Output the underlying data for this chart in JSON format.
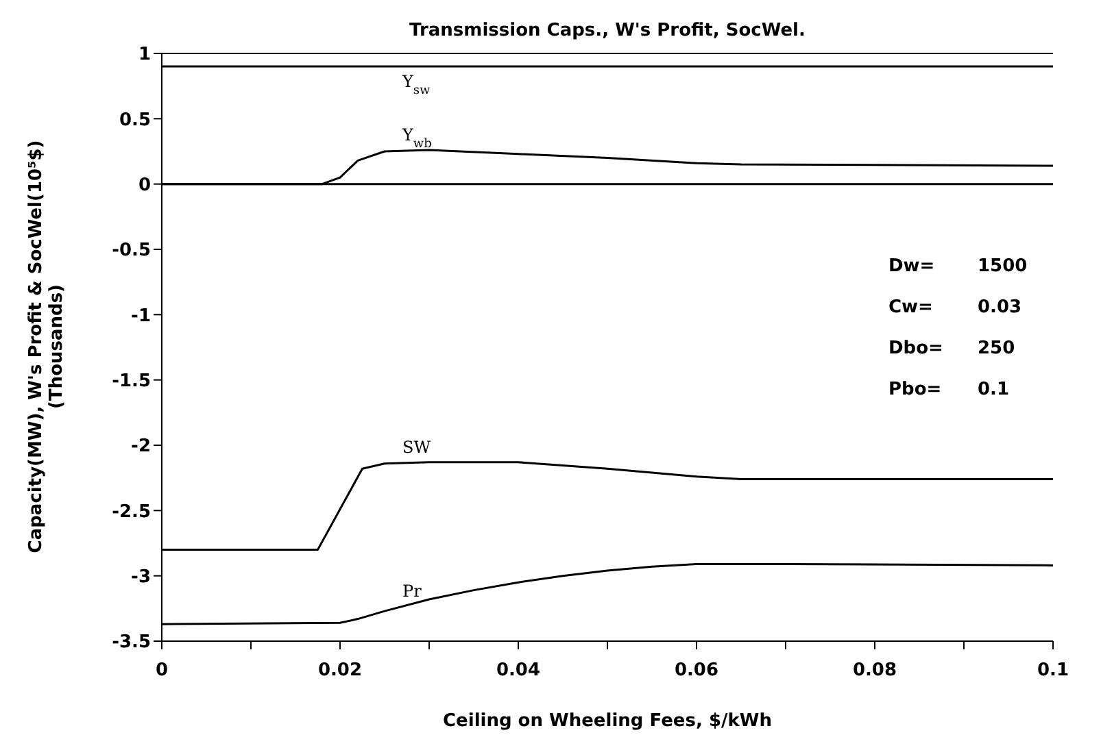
{
  "chart_data": {
    "type": "line",
    "title": "Transmission Caps., W's Profit, SocWel.",
    "xlabel": "Ceiling on Wheeling Fees, $/kWh",
    "ylabel": "Capacity(MW), W's Profit & SocWel(10⁵$)\n(Thousands)",
    "xlim": [
      0,
      0.1
    ],
    "ylim": [
      -3.5,
      1
    ],
    "xticks": [
      0,
      {
        "value": 0.01,
        "label": null
      },
      0.02,
      {
        "value": 0.03,
        "label": null
      },
      0.04,
      {
        "value": 0.05,
        "label": null
      },
      0.06,
      {
        "value": 0.07,
        "label": null
      },
      0.08,
      {
        "value": 0.09,
        "label": null
      },
      0.1
    ],
    "yticks": [
      -3.5,
      -3,
      -2.5,
      -2,
      -1.5,
      -1,
      -0.5,
      0,
      0.5,
      1
    ],
    "grid": false,
    "marker": "none",
    "line_style": "solid",
    "ref_lines": [
      {
        "axis": "y",
        "value": 0,
        "color": "#000000"
      }
    ],
    "annotations": [
      "Dw=  1500",
      "Cw=  0.03",
      "Dbo=  250",
      "Pbo=  0.1"
    ],
    "series": [
      {
        "name": "Y$_{sw}$",
        "color": "#000000",
        "x": [
          0,
          0.1
        ],
        "values": [
          0.9,
          0.9
        ]
      },
      {
        "name": "Y$_{wb}$",
        "color": "#000000",
        "x": [
          0,
          0.018,
          0.02,
          0.022,
          0.025,
          0.03,
          0.04,
          0.05,
          0.06,
          0.065,
          0.1
        ],
        "values": [
          0,
          0,
          0.05,
          0.18,
          0.25,
          0.26,
          0.23,
          0.2,
          0.16,
          0.15,
          0.14
        ]
      },
      {
        "name": "SW",
        "color": "#000000",
        "x": [
          0,
          0.0175,
          0.0225,
          0.025,
          0.03,
          0.04,
          0.05,
          0.06,
          0.065,
          0.1
        ],
        "values": [
          -2.8,
          -2.8,
          -2.18,
          -2.14,
          -2.13,
          -2.13,
          -2.18,
          -2.24,
          -2.26,
          -2.26
        ]
      },
      {
        "name": "Pr",
        "color": "#000000",
        "x": [
          0,
          0.02,
          0.022,
          0.025,
          0.03,
          0.035,
          0.04,
          0.045,
          0.05,
          0.055,
          0.06,
          0.07,
          0.1
        ],
        "values": [
          -3.37,
          -3.36,
          -3.33,
          -3.27,
          -3.18,
          -3.11,
          -3.05,
          -3,
          -2.96,
          -2.93,
          -2.91,
          -2.91,
          -2.92
        ]
      }
    ]
  }
}
